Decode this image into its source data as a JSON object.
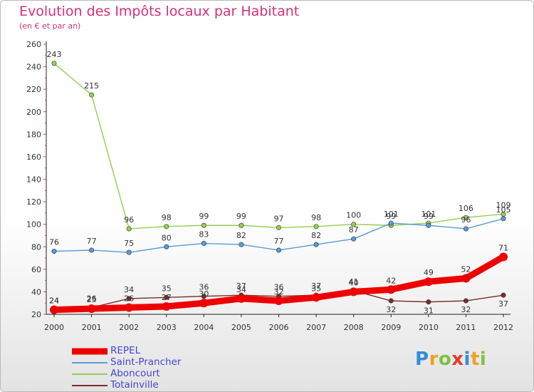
{
  "colors": {
    "title": "#d4307a",
    "repel": "#ee0000",
    "saint_prancher": "#5b9bd5",
    "aboncourt": "#92d050",
    "totainville": "#7b2c2c",
    "legend_text": "#4646d0"
  },
  "chart_data": {
    "type": "line",
    "title": "Evolution des Impôts locaux par Habitant",
    "subtitle": "(en € et par an)",
    "x": [
      2000,
      2001,
      2002,
      2003,
      2004,
      2005,
      2006,
      2007,
      2008,
      2009,
      2010,
      2011,
      2012
    ],
    "ylim": [
      20,
      260
    ],
    "y_ticks": [
      20,
      40,
      60,
      80,
      100,
      120,
      140,
      160,
      180,
      200,
      220,
      240,
      260
    ],
    "grid": false,
    "legend_position": "bottom-left",
    "series": [
      {
        "name": "REPEL",
        "values": [
          24,
          25,
          26,
          27,
          30,
          34,
          32,
          35,
          40,
          42,
          49,
          52,
          71
        ]
      },
      {
        "name": "Saint-Prancher",
        "values": [
          76,
          77,
          75,
          80,
          83,
          82,
          77,
          82,
          87,
          101,
          99,
          96,
          105
        ]
      },
      {
        "name": "Aboncourt",
        "values": [
          243,
          215,
          96,
          98,
          99,
          99,
          97,
          98,
          100,
          99,
          101,
          106,
          109
        ]
      },
      {
        "name": "Totainville",
        "values": [
          24,
          26,
          34,
          35,
          36,
          37,
          36,
          37,
          41,
          32,
          31,
          32,
          37
        ]
      }
    ]
  },
  "logo": {
    "letters": [
      "P",
      "r",
      "o",
      "x",
      "i",
      "t",
      "i"
    ],
    "letter_colors": [
      "#2f8fd8",
      "#f0a020",
      "#7cc242",
      "#e8392b",
      "#2f8fd8",
      "#f0a020",
      "#7cc242"
    ]
  }
}
